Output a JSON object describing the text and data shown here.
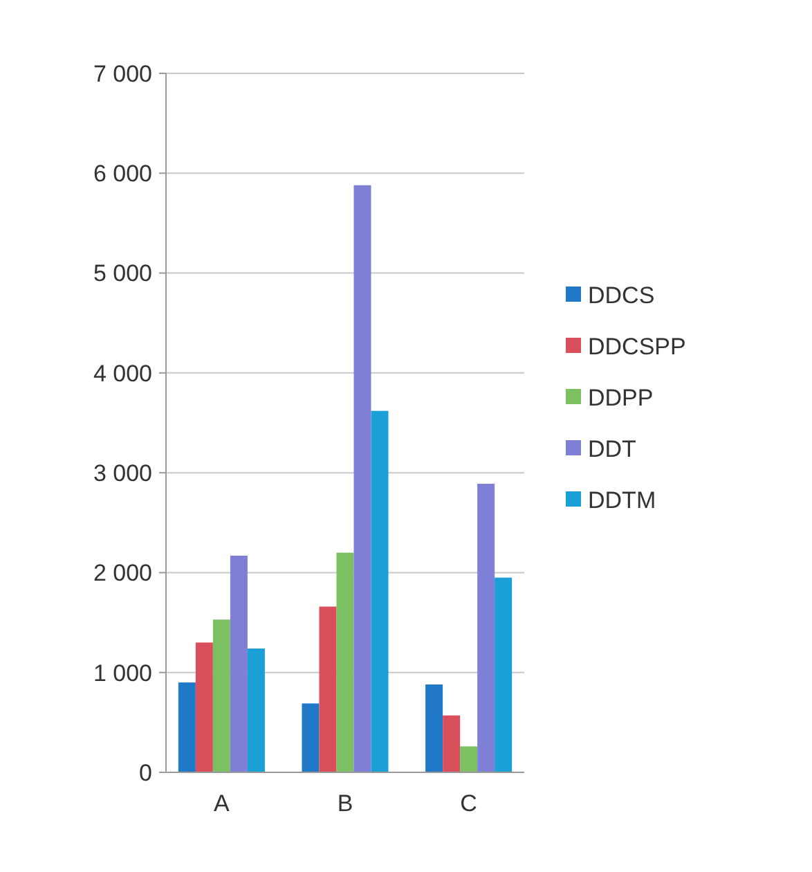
{
  "chart_data": {
    "type": "bar",
    "categories": [
      "A",
      "B",
      "C"
    ],
    "series": [
      {
        "name": "DDCS",
        "color": "#1f78c8",
        "values": [
          900,
          690,
          880
        ]
      },
      {
        "name": "DDCSPP",
        "color": "#d9505c",
        "values": [
          1300,
          1660,
          570
        ]
      },
      {
        "name": "DDPP",
        "color": "#7cc062",
        "values": [
          1530,
          2200,
          260
        ]
      },
      {
        "name": "DDT",
        "color": "#7f7fd6",
        "values": [
          2170,
          5880,
          2890
        ]
      },
      {
        "name": "DDTM",
        "color": "#1a9fd6",
        "values": [
          1240,
          3620,
          1950
        ]
      }
    ],
    "ylim": [
      0,
      7000
    ],
    "yticks": [
      {
        "value": 0,
        "label": "0"
      },
      {
        "value": 1000,
        "label": "1 000"
      },
      {
        "value": 2000,
        "label": "2 000"
      },
      {
        "value": 3000,
        "label": "3 000"
      },
      {
        "value": 4000,
        "label": "4 000"
      },
      {
        "value": 5000,
        "label": "5 000"
      },
      {
        "value": 6000,
        "label": "6 000"
      },
      {
        "value": 7000,
        "label": "7 000"
      }
    ],
    "grid": "y",
    "legend": "right"
  }
}
